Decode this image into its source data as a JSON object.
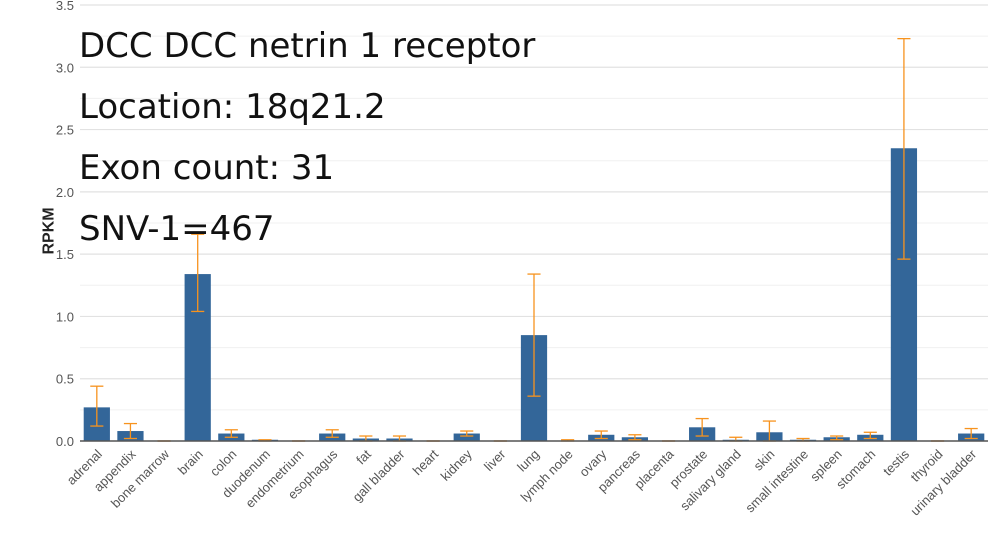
{
  "overlay": {
    "line1": "DCC DCC netrin 1 receptor",
    "line2": "Location: 18q21.2",
    "line3": "Exon count: 31",
    "line4": "SNV-1=467"
  },
  "chart_data": {
    "type": "bar",
    "ylabel": "RPKM",
    "ylim": [
      0,
      3.5
    ],
    "yticks": [
      "0.0",
      "0.5",
      "1.0",
      "1.5",
      "2.0",
      "2.5",
      "3.0",
      "3.5"
    ],
    "grid": true,
    "categories": [
      "adrenal",
      "appendix",
      "bone marrow",
      "brain",
      "colon",
      "duodenum",
      "endometrium",
      "esophagus",
      "fat",
      "gall bladder",
      "heart",
      "kidney",
      "liver",
      "lung",
      "lymph node",
      "ovary",
      "pancreas",
      "placenta",
      "prostate",
      "salivary gland",
      "skin",
      "small intestine",
      "spleen",
      "stomach",
      "testis",
      "thyroid",
      "urinary bladder"
    ],
    "values": [
      0.27,
      0.08,
      0.0,
      1.34,
      0.06,
      0.01,
      0.0,
      0.06,
      0.02,
      0.02,
      0.0,
      0.06,
      0.0,
      0.85,
      0.0,
      0.05,
      0.03,
      0.0,
      0.11,
      0.01,
      0.07,
      0.01,
      0.03,
      0.05,
      2.35,
      0.0,
      0.06
    ],
    "error_low": [
      0.12,
      0.02,
      0.0,
      1.04,
      0.03,
      0.0,
      0.0,
      0.03,
      0.0,
      0.0,
      0.0,
      0.04,
      0.0,
      0.36,
      0.0,
      0.02,
      0.01,
      0.0,
      0.04,
      0.0,
      0.0,
      0.0,
      0.01,
      0.02,
      1.46,
      0.0,
      0.02
    ],
    "error_high": [
      0.44,
      0.14,
      0.0,
      1.66,
      0.09,
      0.01,
      0.0,
      0.09,
      0.04,
      0.04,
      0.0,
      0.08,
      0.0,
      1.34,
      0.01,
      0.08,
      0.05,
      0.0,
      0.18,
      0.03,
      0.16,
      0.02,
      0.04,
      0.07,
      3.23,
      0.0,
      0.1
    ],
    "colors": {
      "bar": "#336699",
      "error": "#f7931e",
      "grid": "#e2e2e2",
      "axis": "#555555"
    }
  }
}
